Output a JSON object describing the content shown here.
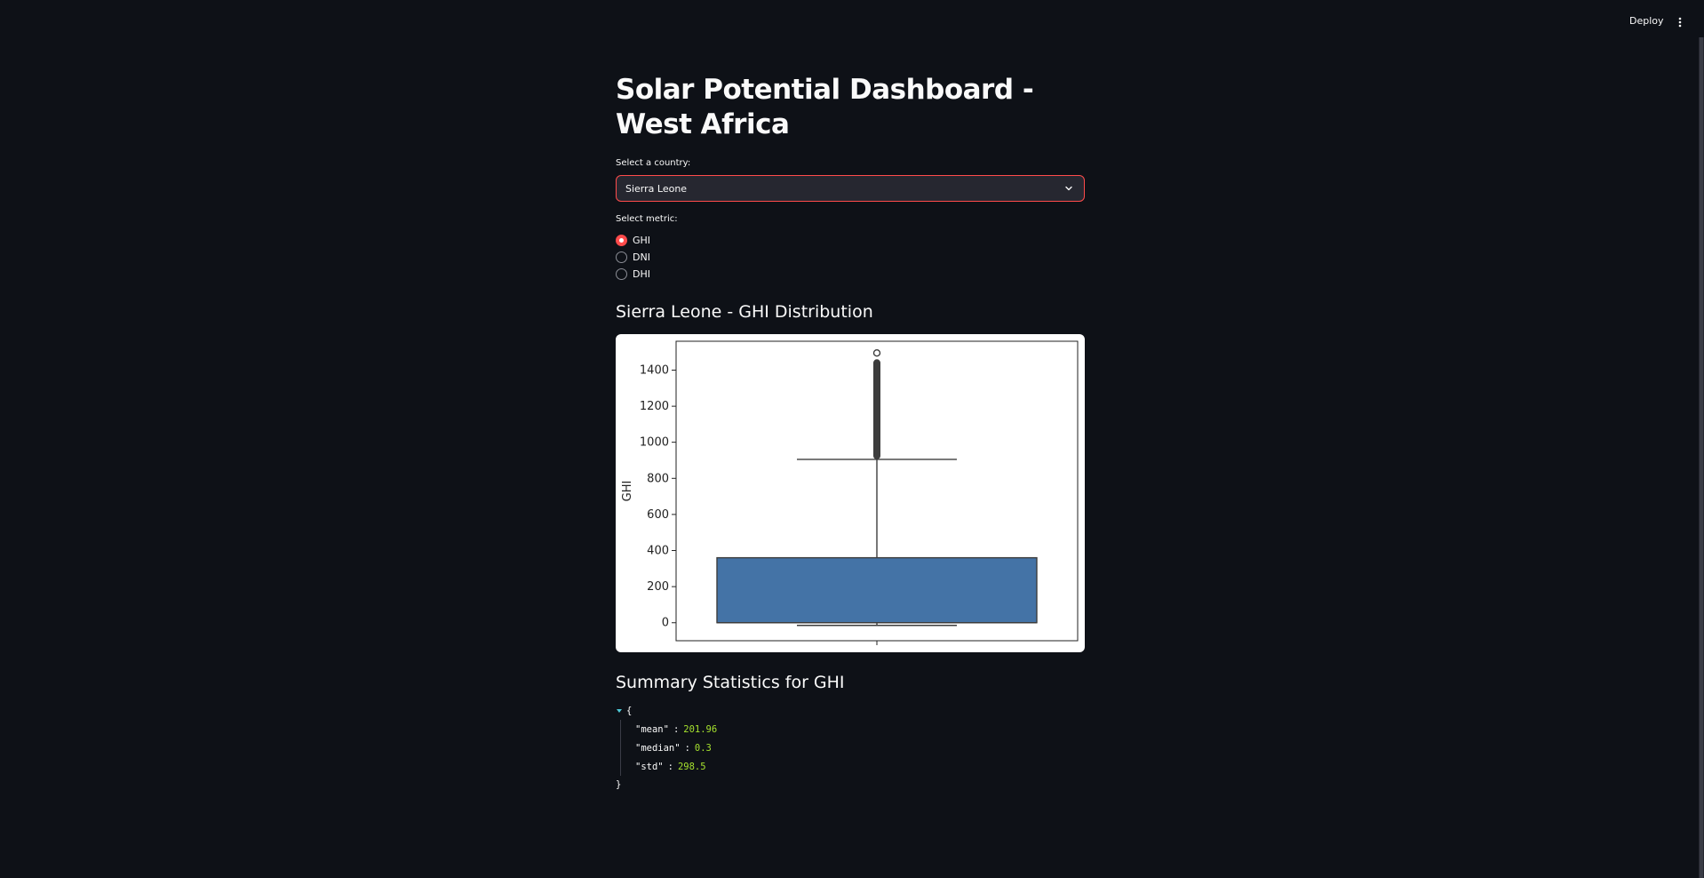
{
  "topbar": {
    "deploy_label": "Deploy",
    "menu_icon": "vertical-ellipsis-icon"
  },
  "page": {
    "title": "Solar Potential Dashboard - West Africa"
  },
  "country_select": {
    "label": "Select a country:",
    "value": "Sierra Leone",
    "icon": "chevron-down-icon",
    "accent": "#ff4b4b"
  },
  "metric_radio": {
    "label": "Select metric:",
    "options": [
      "GHI",
      "DNI",
      "DHI"
    ],
    "selected": "GHI"
  },
  "chart_section": {
    "heading": "Sierra Leone - GHI Distribution"
  },
  "chart_data": {
    "type": "boxplot",
    "title": "",
    "xlabel": "",
    "ylabel": "GHI",
    "ylim": [
      -100,
      1560
    ],
    "yticks": [
      0,
      200,
      400,
      600,
      800,
      1000,
      1200,
      1400
    ],
    "box": {
      "q1": 0,
      "median": 0.3,
      "q3": 360,
      "whisker_low": -15,
      "whisker_high": 905,
      "outliers_range": [
        905,
        1495
      ],
      "outlier_max": 1495
    },
    "box_color": "#4473a6",
    "grid": false
  },
  "stats_section": {
    "heading": "Summary Statistics for GHI",
    "open_brace": "{",
    "close_brace": "}",
    "entries": [
      {
        "key": "\"mean\"",
        "value": "201.96"
      },
      {
        "key": "\"median\"",
        "value": "0.3"
      },
      {
        "key": "\"std\"",
        "value": "298.5"
      }
    ],
    "value_color": "#a6e22e"
  }
}
